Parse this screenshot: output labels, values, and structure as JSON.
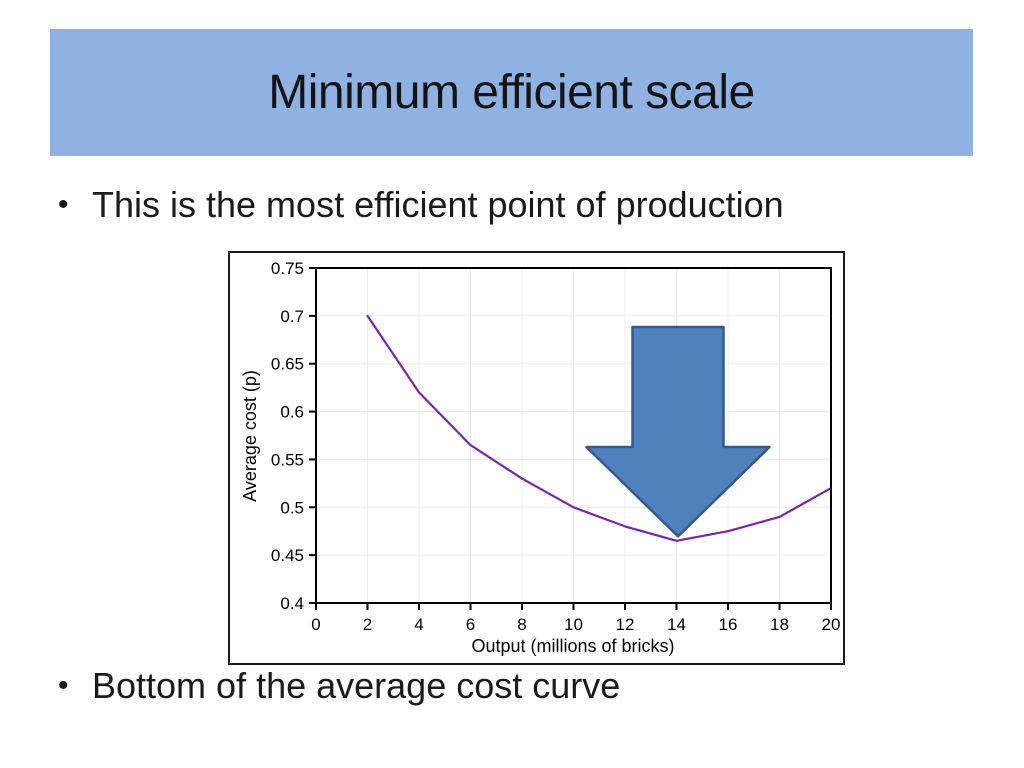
{
  "slide": {
    "title": "Minimum efficient scale",
    "bullets": [
      "This is the most efficient point of production",
      "Bottom of the average cost curve"
    ],
    "bullet_glyph": "•",
    "colors": {
      "title_bg": "#8FB2E2",
      "text": "#1b1b1b"
    }
  },
  "chart_data": {
    "type": "line",
    "title": "",
    "xlabel": "Output (millions of bricks)",
    "ylabel": "Average cost (p)",
    "x": [
      2,
      4,
      6,
      8,
      10,
      12,
      14,
      16,
      18,
      20
    ],
    "values": [
      0.7,
      0.62,
      0.565,
      0.53,
      0.5,
      0.48,
      0.465,
      0.475,
      0.49,
      0.52
    ],
    "series_name": "Average cost",
    "xlim": [
      0,
      20
    ],
    "ylim": [
      0.4,
      0.75
    ],
    "x_ticks": [
      0,
      2,
      4,
      6,
      8,
      10,
      12,
      14,
      16,
      18,
      20
    ],
    "y_ticks": [
      0.4,
      0.45,
      0.5,
      0.55,
      0.6,
      0.65,
      0.7,
      0.75
    ],
    "grid": true,
    "legend": "none",
    "line_color": "#7A26A8",
    "annotation": {
      "type": "down-arrow",
      "points_to_x": 14,
      "points_to_value": 0.465,
      "fill": "#4F81BD",
      "stroke": "#36598C"
    }
  }
}
